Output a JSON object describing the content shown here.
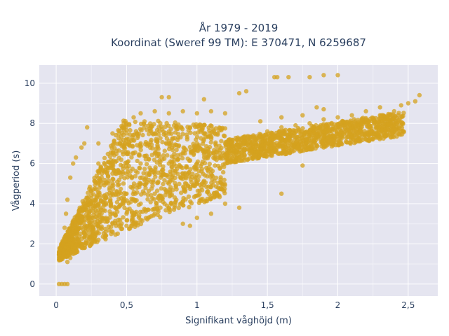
{
  "chart_data": {
    "type": "scatter",
    "title_line1": "År 1979 - 2019",
    "title_line2": "Koordinat (Sweref 99 TM): E 370471, N 6259687",
    "xlabel": "Signifikant våghöjd (m)",
    "ylabel": "Vågperiod (s)",
    "xlim": [
      -0.12,
      2.71
    ],
    "ylim": [
      -0.6,
      10.9
    ],
    "xticks": [
      0,
      0.5,
      1,
      1.5,
      2,
      2.5
    ],
    "xtick_labels": [
      "0",
      "0,5",
      "1",
      "1,5",
      "2",
      "2,5"
    ],
    "yticks": [
      0,
      2,
      4,
      6,
      8,
      10
    ],
    "ytick_labels": [
      "0",
      "2",
      "4",
      "6",
      "8",
      "10"
    ],
    "grid": true,
    "legend": "none",
    "marker_color": "#d4a21f",
    "plot_background": "#e5e5f0",
    "series": [
      {
        "points": [
          [
            0.02,
            0
          ],
          [
            0.04,
            0
          ],
          [
            0.06,
            0
          ],
          [
            0.08,
            0
          ],
          [
            0.03,
            1.2
          ],
          [
            0.05,
            1.4
          ],
          [
            0.08,
            1.1
          ],
          [
            0.1,
            1.3
          ],
          [
            0.12,
            1.5
          ],
          [
            0.15,
            1.6
          ],
          [
            0.2,
            1.8
          ],
          [
            0.25,
            2.0
          ],
          [
            0.3,
            2.2
          ],
          [
            0.35,
            2.4
          ],
          [
            0.4,
            2.6
          ],
          [
            0.5,
            2.9
          ],
          [
            0.6,
            3.2
          ],
          [
            0.7,
            3.5
          ],
          [
            0.8,
            3.8
          ],
          [
            0.9,
            4.1
          ],
          [
            1.0,
            4.4
          ],
          [
            0.05,
            2.0
          ],
          [
            0.06,
            2.8
          ],
          [
            0.07,
            3.5
          ],
          [
            0.08,
            4.2
          ],
          [
            0.1,
            5.3
          ],
          [
            0.12,
            6.0
          ],
          [
            0.14,
            6.3
          ],
          [
            0.18,
            6.8
          ],
          [
            0.2,
            7.0
          ],
          [
            0.22,
            7.8
          ],
          [
            0.3,
            3.0
          ],
          [
            0.3,
            4.0
          ],
          [
            0.3,
            5.0
          ],
          [
            0.3,
            6.0
          ],
          [
            0.3,
            7.0
          ],
          [
            0.4,
            3.5
          ],
          [
            0.4,
            4.5
          ],
          [
            0.4,
            5.5
          ],
          [
            0.4,
            6.5
          ],
          [
            0.4,
            7.5
          ],
          [
            0.5,
            3.5
          ],
          [
            0.5,
            4.5
          ],
          [
            0.5,
            5.5
          ],
          [
            0.5,
            6.5
          ],
          [
            0.5,
            7.5
          ],
          [
            0.5,
            8.0
          ],
          [
            0.55,
            8.3
          ],
          [
            0.6,
            8.5
          ],
          [
            0.6,
            4.0
          ],
          [
            0.6,
            5.0
          ],
          [
            0.6,
            6.0
          ],
          [
            0.6,
            7.0
          ],
          [
            0.7,
            8.6
          ],
          [
            0.7,
            4.5
          ],
          [
            0.7,
            5.5
          ],
          [
            0.7,
            6.5
          ],
          [
            0.7,
            7.5
          ],
          [
            0.8,
            8.5
          ],
          [
            0.8,
            5.0
          ],
          [
            0.8,
            6.0
          ],
          [
            0.8,
            7.0
          ],
          [
            0.9,
            8.6
          ],
          [
            0.9,
            5.5
          ],
          [
            0.9,
            6.5
          ],
          [
            1.0,
            8.5
          ],
          [
            1.0,
            5.0
          ],
          [
            1.0,
            6.0
          ],
          [
            1.0,
            7.0
          ],
          [
            1.1,
            8.6
          ],
          [
            1.1,
            5.5
          ],
          [
            1.1,
            6.5
          ],
          [
            1.2,
            8.5
          ],
          [
            1.2,
            6.0
          ],
          [
            1.2,
            7.0
          ],
          [
            0.75,
            9.3
          ],
          [
            0.8,
            9.3
          ],
          [
            1.05,
            9.2
          ],
          [
            1.3,
            9.5
          ],
          [
            1.35,
            9.6
          ],
          [
            1.55,
            10.3
          ],
          [
            1.57,
            10.3
          ],
          [
            1.65,
            10.3
          ],
          [
            1.8,
            10.3
          ],
          [
            1.9,
            10.4
          ],
          [
            2.0,
            10.4
          ],
          [
            1.3,
            6.5
          ],
          [
            1.3,
            7.2
          ],
          [
            1.4,
            6.8
          ],
          [
            1.4,
            7.4
          ],
          [
            1.5,
            7.0
          ],
          [
            1.5,
            7.6
          ],
          [
            1.6,
            7.2
          ],
          [
            1.6,
            7.8
          ],
          [
            1.7,
            7.3
          ],
          [
            1.7,
            7.9
          ],
          [
            1.8,
            7.5
          ],
          [
            1.8,
            8.0
          ],
          [
            1.9,
            7.6
          ],
          [
            1.9,
            8.2
          ],
          [
            2.0,
            7.8
          ],
          [
            2.0,
            8.3
          ],
          [
            2.1,
            8.0
          ],
          [
            2.1,
            8.4
          ],
          [
            2.2,
            8.2
          ],
          [
            2.2,
            8.6
          ],
          [
            2.3,
            8.4
          ],
          [
            2.3,
            8.8
          ],
          [
            2.4,
            8.6
          ],
          [
            2.45,
            8.9
          ],
          [
            2.5,
            9.0
          ],
          [
            2.55,
            9.1
          ],
          [
            2.58,
            9.4
          ],
          [
            1.75,
            5.9
          ],
          [
            1.6,
            4.5
          ],
          [
            1.3,
            3.8
          ],
          [
            1.2,
            4.0
          ],
          [
            1.1,
            3.5
          ],
          [
            1.0,
            3.3
          ],
          [
            0.9,
            3.0
          ],
          [
            0.95,
            2.9
          ],
          [
            1.45,
            8.1
          ],
          [
            1.6,
            8.3
          ],
          [
            1.75,
            8.4
          ],
          [
            1.9,
            8.7
          ],
          [
            1.85,
            8.8
          ]
        ]
      }
    ]
  }
}
